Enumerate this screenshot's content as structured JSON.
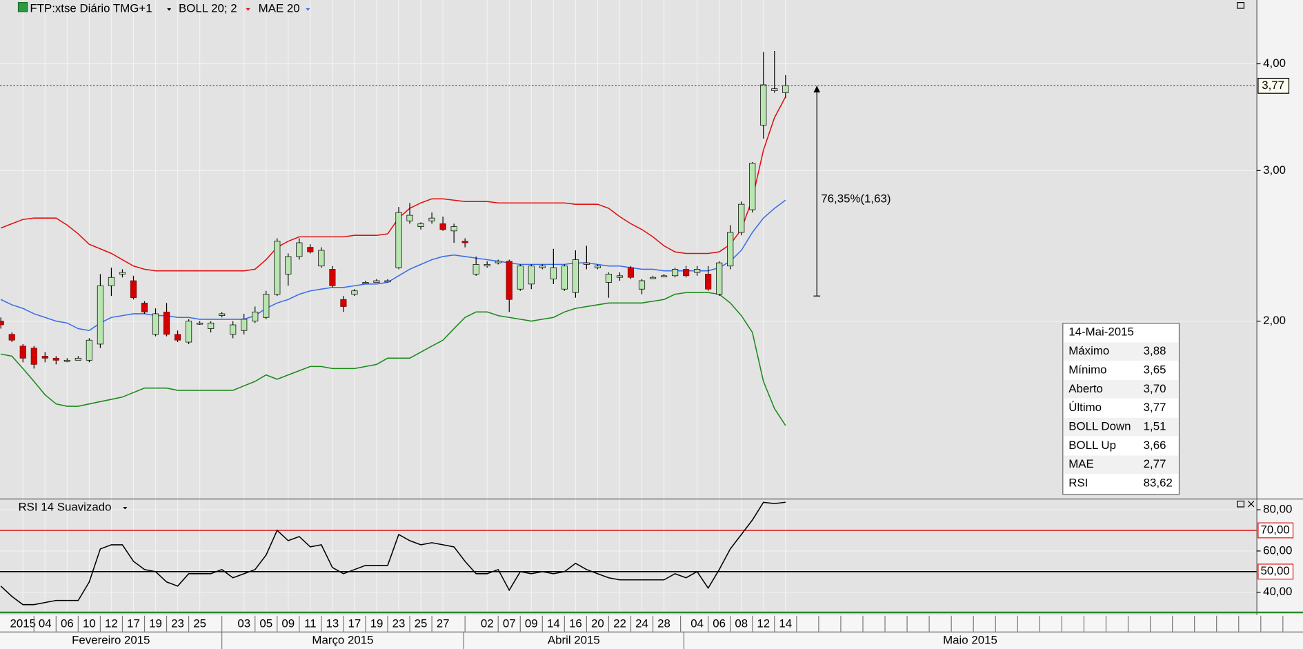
{
  "chart_data": [
    {
      "type": "candlestick",
      "title": "FTP:xtse Diário TMG+1",
      "indicators": [
        {
          "name": "BOLL 20; 2",
          "color": "#e01010"
        },
        {
          "name": "MAE 20",
          "color": "#3a6ee8"
        }
      ],
      "categories": [
        null,
        null,
        "2015",
        null,
        "04",
        null,
        "06",
        null,
        "10",
        null,
        "12",
        null,
        "17",
        null,
        "19",
        null,
        "23",
        null,
        "25",
        null,
        null,
        null,
        "03",
        null,
        "05",
        null,
        "09",
        null,
        "11",
        null,
        "13",
        null,
        "17",
        null,
        "19",
        null,
        "23",
        null,
        "25",
        null,
        "27",
        null,
        null,
        null,
        "02",
        null,
        "07",
        null,
        "09",
        null,
        "14",
        null,
        "16",
        null,
        "20",
        null,
        "22",
        null,
        "24",
        null,
        "28",
        null,
        null,
        "04",
        null,
        "06",
        null,
        "08",
        null,
        "12",
        null,
        "14"
      ],
      "months": [
        "Fevereiro 2015",
        "Março 2015",
        "Abril 2015",
        "Maio 2015"
      ],
      "open": [
        2.0,
        1.93,
        1.87,
        1.86,
        1.82,
        1.81,
        1.8,
        1.8,
        1.8,
        1.88,
        2.2,
        2.27,
        2.23,
        2.1,
        1.93,
        2.05,
        1.93,
        1.89,
        1.99,
        1.96,
        2.03,
        1.93,
        1.95,
        2.0,
        2.02,
        2.15,
        2.27,
        2.38,
        2.44,
        2.32,
        2.3,
        2.12,
        2.15,
        2.22,
        2.22,
        2.23,
        2.31,
        2.62,
        2.58,
        2.62,
        2.6,
        2.55,
        2.48,
        2.27,
        2.32,
        2.34,
        2.35,
        2.18,
        2.21,
        2.31,
        2.24,
        2.18,
        2.16,
        2.33,
        2.31,
        2.22,
        2.25,
        2.31,
        2.18,
        2.25,
        2.26,
        2.26,
        2.3,
        2.28,
        2.27,
        2.15,
        2.32,
        2.54,
        2.7,
        3.39,
        3.72,
        3.7
      ],
      "high": [
        2.02,
        1.94,
        1.88,
        1.87,
        1.84,
        1.82,
        1.81,
        1.82,
        1.91,
        2.27,
        2.31,
        2.3,
        2.26,
        2.11,
        2.07,
        2.1,
        1.95,
        2.01,
        2.0,
        2.0,
        2.05,
        2.0,
        2.04,
        2.08,
        2.17,
        2.5,
        2.4,
        2.5,
        2.46,
        2.44,
        2.32,
        2.14,
        2.18,
        2.23,
        2.24,
        2.24,
        2.72,
        2.75,
        2.61,
        2.68,
        2.65,
        2.6,
        2.5,
        2.38,
        2.35,
        2.36,
        2.36,
        2.33,
        2.33,
        2.33,
        2.43,
        2.33,
        2.42,
        2.45,
        2.33,
        2.28,
        2.28,
        2.32,
        2.24,
        2.26,
        2.27,
        2.31,
        2.32,
        2.32,
        2.32,
        2.35,
        2.59,
        2.76,
        3.07,
        4.13,
        4.14,
        3.88
      ],
      "low": [
        1.96,
        1.89,
        1.79,
        1.76,
        1.79,
        1.78,
        1.79,
        1.8,
        1.79,
        1.86,
        2.14,
        2.25,
        2.12,
        2.04,
        1.92,
        1.92,
        1.89,
        1.88,
        1.98,
        1.94,
        2.02,
        1.91,
        1.93,
        1.99,
        2.01,
        2.14,
        2.2,
        2.36,
        2.4,
        2.31,
        2.19,
        2.05,
        2.14,
        2.21,
        2.22,
        2.22,
        2.3,
        2.6,
        2.56,
        2.6,
        2.55,
        2.47,
        2.44,
        2.26,
        2.31,
        2.33,
        2.05,
        2.17,
        2.18,
        2.3,
        2.21,
        2.17,
        2.13,
        2.3,
        2.3,
        2.13,
        2.23,
        2.24,
        2.15,
        2.24,
        2.25,
        2.25,
        2.25,
        2.26,
        2.17,
        2.14,
        2.3,
        2.52,
        2.68,
        3.27,
        3.7,
        3.65
      ],
      "close": [
        1.98,
        1.9,
        1.81,
        1.78,
        1.81,
        1.8,
        1.8,
        1.81,
        1.9,
        2.2,
        2.25,
        2.28,
        2.13,
        2.05,
        2.04,
        1.93,
        1.9,
        2.0,
        1.99,
        1.99,
        2.04,
        1.98,
        2.01,
        2.05,
        2.15,
        2.48,
        2.38,
        2.47,
        2.41,
        2.42,
        2.2,
        2.08,
        2.17,
        2.22,
        2.23,
        2.23,
        2.68,
        2.66,
        2.6,
        2.64,
        2.56,
        2.58,
        2.47,
        2.33,
        2.33,
        2.35,
        2.12,
        2.32,
        2.32,
        2.32,
        2.31,
        2.32,
        2.36,
        2.34,
        2.32,
        2.27,
        2.26,
        2.25,
        2.23,
        2.25,
        2.26,
        2.3,
        2.26,
        2.3,
        2.18,
        2.34,
        2.54,
        2.74,
        3.06,
        3.78,
        3.74,
        3.77
      ],
      "up_color": "#b9e6b0",
      "down_color": "#d40000",
      "series": [
        {
          "name": "BOLL Up",
          "color": "#e01010",
          "last_label": "3,66",
          "values": [
            2.57,
            2.6,
            2.63,
            2.64,
            2.64,
            2.64,
            2.59,
            2.53,
            2.46,
            2.43,
            2.4,
            2.36,
            2.32,
            2.3,
            2.29,
            2.29,
            2.29,
            2.29,
            2.29,
            2.29,
            2.29,
            2.29,
            2.29,
            2.3,
            2.36,
            2.44,
            2.48,
            2.51,
            2.51,
            2.51,
            2.51,
            2.51,
            2.52,
            2.52,
            2.52,
            2.53,
            2.64,
            2.71,
            2.75,
            2.78,
            2.78,
            2.77,
            2.76,
            2.76,
            2.76,
            2.75,
            2.75,
            2.75,
            2.75,
            2.75,
            2.75,
            2.75,
            2.74,
            2.74,
            2.74,
            2.71,
            2.65,
            2.6,
            2.56,
            2.51,
            2.45,
            2.41,
            2.4,
            2.4,
            2.4,
            2.41,
            2.46,
            2.56,
            2.78,
            3.17,
            3.46,
            3.66
          ]
        },
        {
          "name": "BOLL Down",
          "color": "#1a8a1a",
          "last_label": "1,51",
          "values": [
            1.83,
            1.82,
            1.76,
            1.7,
            1.64,
            1.6,
            1.59,
            1.59,
            1.6,
            1.61,
            1.62,
            1.63,
            1.65,
            1.67,
            1.67,
            1.67,
            1.66,
            1.66,
            1.66,
            1.66,
            1.66,
            1.66,
            1.68,
            1.7,
            1.73,
            1.71,
            1.73,
            1.75,
            1.77,
            1.77,
            1.76,
            1.76,
            1.76,
            1.77,
            1.78,
            1.81,
            1.81,
            1.81,
            1.84,
            1.87,
            1.9,
            1.96,
            2.02,
            2.05,
            2.05,
            2.03,
            2.02,
            2.01,
            2.0,
            2.01,
            2.02,
            2.05,
            2.07,
            2.08,
            2.09,
            2.1,
            2.1,
            2.1,
            2.1,
            2.11,
            2.12,
            2.15,
            2.16,
            2.16,
            2.16,
            2.15,
            2.1,
            2.03,
            1.94,
            1.7,
            1.58,
            1.51
          ]
        },
        {
          "name": "MAE",
          "color": "#3a6ee8",
          "last_label": "2,77",
          "values": [
            2.12,
            2.09,
            2.07,
            2.04,
            2.02,
            2.0,
            1.99,
            1.96,
            1.95,
            1.99,
            2.02,
            2.03,
            2.04,
            2.04,
            2.03,
            2.03,
            2.02,
            2.02,
            2.01,
            2.01,
            2.01,
            2.01,
            2.01,
            2.03,
            2.07,
            2.1,
            2.12,
            2.15,
            2.17,
            2.18,
            2.19,
            2.19,
            2.2,
            2.21,
            2.21,
            2.22,
            2.26,
            2.3,
            2.33,
            2.36,
            2.38,
            2.39,
            2.38,
            2.37,
            2.36,
            2.35,
            2.34,
            2.33,
            2.33,
            2.33,
            2.33,
            2.33,
            2.34,
            2.34,
            2.33,
            2.32,
            2.32,
            2.31,
            2.3,
            2.3,
            2.29,
            2.29,
            2.29,
            2.29,
            2.29,
            2.31,
            2.35,
            2.42,
            2.54,
            2.64,
            2.71,
            2.77
          ]
        }
      ],
      "ylim": [
        1.24,
        4.75
      ],
      "log": true,
      "grid": true,
      "yticks": [
        {
          "value": 4,
          "label": "4,00"
        },
        {
          "value": 3,
          "label": "3,00"
        },
        {
          "value": 2,
          "label": "2,00"
        }
      ],
      "price_line": {
        "value": 3.77,
        "label": "3,77",
        "color": "#e01010"
      },
      "annotation": {
        "text": "76,35%(1,63)",
        "from": 2.14,
        "to": 3.77
      }
    },
    {
      "type": "line",
      "title": "RSI 14 Suavizado",
      "series": [
        {
          "name": "RSI",
          "color": "#000000",
          "last_label": "83,62",
          "values": [
            43,
            38,
            34,
            34,
            35,
            36,
            36,
            36,
            45,
            61,
            63,
            63,
            55,
            51,
            50,
            45,
            43,
            49,
            49,
            49,
            51,
            47,
            49,
            51,
            58,
            70,
            65,
            67,
            62,
            63,
            52,
            49,
            51,
            53,
            53,
            53,
            68,
            65,
            63,
            64,
            63,
            62,
            55,
            49,
            49,
            51,
            41,
            50,
            49,
            50,
            49,
            50,
            54,
            51,
            49,
            47,
            46,
            46,
            46,
            46,
            46,
            49,
            47,
            50,
            42,
            51,
            61,
            68,
            75,
            83.6,
            83,
            83.62
          ]
        }
      ],
      "ylim": [
        29,
        85
      ],
      "grid": true,
      "yticks": [
        {
          "value": 80,
          "label": "80,00"
        },
        {
          "value": 60,
          "label": "60,00"
        },
        {
          "value": 40,
          "label": "40,00"
        }
      ],
      "reference_lines": [
        {
          "value": 70,
          "label": "70,00",
          "color": "#e01010"
        },
        {
          "value": 50,
          "label": "50,00",
          "color": "#000000"
        }
      ]
    }
  ],
  "info_panel": {
    "title": "14-Mai-2015",
    "rows": [
      {
        "label": "Máximo",
        "value": "3,88"
      },
      {
        "label": "Mínimo",
        "value": "3,65"
      },
      {
        "label": "Aberto",
        "value": "3,70"
      },
      {
        "label": "Último",
        "value": "3,77"
      }
    ]
  }
}
